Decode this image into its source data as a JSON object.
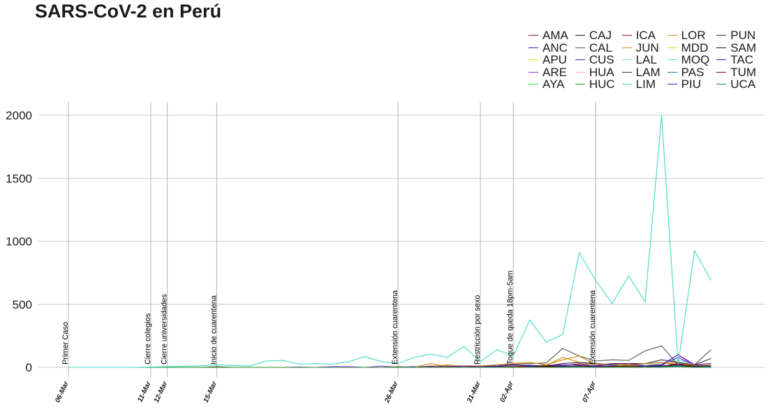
{
  "title": "SARS-CoV-2 en Perú",
  "chart_data": {
    "type": "line",
    "title": "SARS-CoV-2 en Perú",
    "xlabel": "",
    "ylabel": "",
    "x_range": [
      "2020-03-06",
      "2020-04-14"
    ],
    "ylim": [
      -50,
      2100
    ],
    "y_ticks": [
      0,
      500,
      1000,
      1500,
      2000
    ],
    "x_tick_labels": [
      {
        "date": "2020-03-06",
        "label": "06-Mar"
      },
      {
        "date": "2020-03-11",
        "label": "11-Mar"
      },
      {
        "date": "2020-03-12",
        "label": "12-Mar"
      },
      {
        "date": "2020-03-15",
        "label": "15-Mar"
      },
      {
        "date": "2020-03-26",
        "label": "26-Mar"
      },
      {
        "date": "2020-03-31",
        "label": "31-Mar"
      },
      {
        "date": "2020-04-02",
        "label": "02-Apr"
      },
      {
        "date": "2020-04-07",
        "label": "07-Apr"
      }
    ],
    "events": [
      {
        "date": "2020-03-06",
        "label": "Primer Caso"
      },
      {
        "date": "2020-03-11",
        "label": "Cierre colegios"
      },
      {
        "date": "2020-03-12",
        "label": "Cierre universidades"
      },
      {
        "date": "2020-03-15",
        "label": "Inicio de cuarentena"
      },
      {
        "date": "2020-03-26",
        "label": "Extensión cuarentena"
      },
      {
        "date": "2020-03-31",
        "label": "Restricción por sexo"
      },
      {
        "date": "2020-04-02",
        "label": "Toque de queda 18pm-5am"
      },
      {
        "date": "2020-04-07",
        "label": "Extensión cuarentena"
      }
    ],
    "grid": true,
    "legend_position": "top-right",
    "series": [
      {
        "name": "AMA",
        "color": "#8B1A1A",
        "values": [
          0,
          0,
          0,
          0,
          0,
          0,
          0,
          0,
          0,
          0,
          0,
          0,
          0,
          0,
          0,
          0,
          0,
          0,
          0,
          0,
          0,
          0,
          0,
          0,
          0,
          0,
          0,
          0,
          0,
          0,
          0,
          5,
          0,
          3,
          10,
          0,
          4,
          20,
          0,
          5
        ]
      },
      {
        "name": "ANC",
        "color": "#1f1fcc",
        "values": [
          0,
          0,
          0,
          0,
          0,
          0,
          0,
          0,
          0,
          0,
          0,
          0,
          0,
          0,
          0,
          0,
          0,
          0,
          0,
          0,
          0,
          2,
          0,
          5,
          0,
          0,
          5,
          0,
          10,
          0,
          5,
          10,
          15,
          5,
          20,
          10,
          8,
          30,
          5,
          10
        ]
      },
      {
        "name": "APU",
        "color": "#e6e600",
        "values": [
          0,
          0,
          0,
          0,
          0,
          0,
          0,
          0,
          0,
          0,
          0,
          0,
          0,
          0,
          0,
          0,
          0,
          0,
          0,
          0,
          0,
          0,
          0,
          0,
          0,
          0,
          0,
          0,
          0,
          0,
          0,
          0,
          0,
          0,
          0,
          0,
          0,
          5,
          0,
          0
        ]
      },
      {
        "name": "ARE",
        "color": "#9b30ff",
        "values": [
          0,
          0,
          0,
          0,
          0,
          0,
          0,
          0,
          0,
          0,
          0,
          0,
          0,
          0,
          3,
          0,
          5,
          5,
          0,
          10,
          0,
          5,
          5,
          5,
          10,
          10,
          10,
          15,
          10,
          5,
          10,
          10,
          5,
          15,
          10,
          10,
          20,
          100,
          10,
          5
        ]
      },
      {
        "name": "AYA",
        "color": "#33dd33",
        "values": [
          0,
          0,
          0,
          0,
          0,
          0,
          0,
          0,
          0,
          0,
          0,
          0,
          0,
          0,
          0,
          0,
          0,
          0,
          0,
          0,
          0,
          0,
          0,
          0,
          0,
          0,
          0,
          0,
          0,
          0,
          0,
          0,
          0,
          0,
          0,
          0,
          0,
          5,
          0,
          0
        ]
      },
      {
        "name": "CAJ",
        "color": "#1a1a1a",
        "values": [
          0,
          0,
          0,
          0,
          0,
          0,
          0,
          0,
          0,
          0,
          0,
          0,
          0,
          0,
          0,
          0,
          0,
          0,
          0,
          0,
          0,
          0,
          0,
          0,
          0,
          0,
          0,
          5,
          0,
          5,
          0,
          10,
          0,
          5,
          10,
          0,
          5,
          30,
          0,
          10
        ]
      },
      {
        "name": "CAL",
        "color": "#555555",
        "values": [
          0,
          0,
          0,
          0,
          0,
          0,
          0,
          0,
          0,
          5,
          0,
          0,
          0,
          0,
          0,
          0,
          0,
          0,
          0,
          0,
          5,
          0,
          10,
          10,
          5,
          10,
          20,
          25,
          30,
          35,
          150,
          90,
          50,
          60,
          55,
          130,
          170,
          20,
          20,
          140
        ]
      },
      {
        "name": "CUS",
        "color": "#3a2a9a",
        "values": [
          0,
          0,
          0,
          0,
          0,
          0,
          0,
          0,
          0,
          0,
          0,
          0,
          0,
          0,
          0,
          0,
          0,
          0,
          0,
          0,
          0,
          5,
          5,
          0,
          5,
          0,
          5,
          10,
          10,
          5,
          20,
          15,
          10,
          15,
          10,
          10,
          15,
          80,
          10,
          10
        ]
      },
      {
        "name": "HUA",
        "color": "#ffaaaa",
        "values": [
          0,
          0,
          0,
          0,
          0,
          0,
          0,
          0,
          0,
          0,
          0,
          0,
          0,
          0,
          0,
          0,
          0,
          0,
          0,
          0,
          0,
          0,
          0,
          0,
          0,
          0,
          0,
          0,
          0,
          0,
          0,
          0,
          0,
          0,
          0,
          0,
          0,
          5,
          0,
          0
        ]
      },
      {
        "name": "HUC",
        "color": "#229922",
        "values": [
          0,
          0,
          0,
          0,
          0,
          0,
          0,
          0,
          0,
          0,
          0,
          0,
          0,
          0,
          0,
          0,
          0,
          0,
          0,
          0,
          0,
          0,
          0,
          0,
          0,
          0,
          0,
          0,
          0,
          0,
          0,
          0,
          0,
          0,
          0,
          0,
          5,
          10,
          0,
          5
        ]
      },
      {
        "name": "ICA",
        "color": "#a01a1a",
        "values": [
          0,
          0,
          0,
          0,
          0,
          0,
          0,
          0,
          0,
          0,
          0,
          0,
          0,
          0,
          0,
          0,
          0,
          0,
          0,
          0,
          0,
          0,
          0,
          0,
          0,
          0,
          5,
          10,
          5,
          20,
          10,
          30,
          10,
          20,
          30,
          30,
          40,
          20,
          10,
          20
        ]
      },
      {
        "name": "JUN",
        "color": "#d4900a",
        "values": [
          0,
          0,
          0,
          0,
          0,
          0,
          0,
          0,
          0,
          0,
          0,
          0,
          0,
          0,
          0,
          0,
          0,
          0,
          0,
          0,
          0,
          0,
          5,
          20,
          5,
          5,
          10,
          20,
          10,
          15,
          80,
          40,
          20,
          10,
          20,
          10,
          30,
          40,
          10,
          20
        ]
      },
      {
        "name": "LAL",
        "color": "#87ceeb",
        "values": [
          0,
          0,
          0,
          0,
          0,
          0,
          0,
          0,
          0,
          0,
          0,
          0,
          0,
          0,
          0,
          0,
          0,
          0,
          0,
          0,
          0,
          0,
          0,
          5,
          10,
          5,
          10,
          10,
          20,
          10,
          20,
          10,
          20,
          15,
          30,
          20,
          30,
          60,
          20,
          30
        ]
      },
      {
        "name": "LAM",
        "color": "#333333",
        "values": [
          0,
          0,
          0,
          0,
          0,
          0,
          0,
          0,
          0,
          0,
          0,
          0,
          0,
          0,
          0,
          0,
          0,
          0,
          0,
          0,
          0,
          0,
          0,
          5,
          0,
          5,
          10,
          20,
          15,
          10,
          30,
          40,
          30,
          20,
          30,
          30,
          60,
          40,
          20,
          70
        ]
      },
      {
        "name": "LIM",
        "color": "#3fd9c4",
        "values": [
          0,
          0,
          0,
          0,
          0,
          3,
          5,
          8,
          12,
          20,
          15,
          10,
          50,
          55,
          25,
          30,
          25,
          45,
          85,
          45,
          30,
          80,
          105,
          80,
          165,
          45,
          140,
          90,
          375,
          200,
          260,
          910,
          690,
          505,
          725,
          520,
          2000,
          25,
          925,
          690
        ]
      },
      {
        "name": "LOR",
        "color": "#d08800",
        "values": [
          0,
          0,
          0,
          0,
          0,
          0,
          0,
          0,
          0,
          0,
          0,
          0,
          0,
          0,
          0,
          0,
          0,
          0,
          0,
          0,
          0,
          0,
          30,
          5,
          10,
          10,
          20,
          30,
          40,
          20,
          60,
          90,
          20,
          30,
          20,
          30,
          40,
          20,
          20,
          10
        ]
      },
      {
        "name": "MDD",
        "color": "#e6d000",
        "values": [
          0,
          0,
          0,
          0,
          0,
          0,
          0,
          0,
          0,
          0,
          0,
          0,
          0,
          0,
          0,
          0,
          0,
          0,
          0,
          0,
          0,
          0,
          0,
          0,
          0,
          0,
          0,
          0,
          0,
          0,
          0,
          0,
          0,
          0,
          0,
          0,
          0,
          5,
          0,
          0
        ]
      },
      {
        "name": "MOQ",
        "color": "#55ee88",
        "values": [
          0,
          0,
          0,
          0,
          0,
          0,
          0,
          0,
          0,
          0,
          0,
          0,
          0,
          0,
          0,
          0,
          0,
          0,
          0,
          0,
          0,
          0,
          0,
          0,
          0,
          0,
          0,
          0,
          0,
          0,
          0,
          0,
          0,
          0,
          0,
          0,
          5,
          10,
          0,
          5
        ]
      },
      {
        "name": "PAS",
        "color": "#1f77b4",
        "values": [
          0,
          0,
          0,
          0,
          0,
          0,
          0,
          0,
          0,
          0,
          0,
          0,
          0,
          0,
          0,
          0,
          0,
          0,
          0,
          0,
          0,
          0,
          0,
          0,
          0,
          0,
          0,
          0,
          0,
          0,
          0,
          0,
          0,
          0,
          0,
          0,
          0,
          5,
          0,
          0
        ]
      },
      {
        "name": "PIU",
        "color": "#6a0dad",
        "values": [
          0,
          0,
          0,
          0,
          0,
          0,
          0,
          0,
          0,
          0,
          0,
          0,
          0,
          0,
          0,
          0,
          0,
          0,
          0,
          0,
          0,
          0,
          5,
          5,
          10,
          5,
          10,
          20,
          10,
          10,
          20,
          20,
          10,
          30,
          30,
          10,
          20,
          100,
          20,
          30
        ]
      },
      {
        "name": "PUN",
        "color": "#3a3a3a",
        "values": [
          0,
          0,
          0,
          0,
          0,
          0,
          0,
          0,
          0,
          0,
          0,
          0,
          0,
          0,
          0,
          0,
          0,
          0,
          0,
          0,
          0,
          0,
          0,
          0,
          0,
          0,
          0,
          0,
          0,
          0,
          0,
          5,
          0,
          5,
          0,
          0,
          5,
          10,
          0,
          5
        ]
      },
      {
        "name": "SAM",
        "color": "#111111",
        "values": [
          0,
          0,
          0,
          0,
          0,
          0,
          0,
          0,
          0,
          0,
          0,
          0,
          0,
          0,
          0,
          0,
          0,
          0,
          0,
          0,
          0,
          0,
          0,
          0,
          0,
          0,
          5,
          5,
          0,
          10,
          5,
          10,
          5,
          10,
          5,
          10,
          10,
          20,
          10,
          10
        ]
      },
      {
        "name": "TAC",
        "color": "#2020aa",
        "values": [
          0,
          0,
          0,
          0,
          0,
          0,
          0,
          0,
          0,
          0,
          0,
          0,
          0,
          0,
          0,
          0,
          0,
          0,
          0,
          0,
          0,
          0,
          0,
          0,
          0,
          0,
          5,
          0,
          5,
          0,
          10,
          5,
          5,
          10,
          5,
          10,
          10,
          20,
          5,
          10
        ]
      },
      {
        "name": "TUM",
        "color": "#800000",
        "values": [
          0,
          0,
          0,
          0,
          0,
          0,
          0,
          0,
          0,
          0,
          0,
          0,
          0,
          0,
          0,
          0,
          0,
          0,
          0,
          0,
          0,
          0,
          0,
          0,
          0,
          0,
          0,
          5,
          0,
          5,
          0,
          10,
          0,
          5,
          10,
          0,
          5,
          30,
          0,
          5
        ]
      },
      {
        "name": "UCA",
        "color": "#228b22",
        "values": [
          0,
          0,
          0,
          0,
          0,
          0,
          0,
          0,
          0,
          0,
          0,
          0,
          0,
          0,
          0,
          0,
          0,
          0,
          0,
          0,
          0,
          0,
          0,
          0,
          0,
          0,
          0,
          0,
          0,
          0,
          0,
          5,
          0,
          0,
          5,
          0,
          5,
          10,
          0,
          5
        ]
      }
    ]
  }
}
